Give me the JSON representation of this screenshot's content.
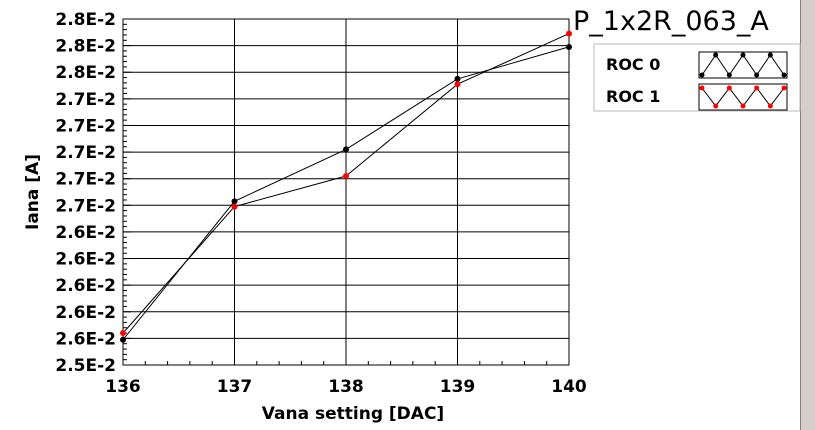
{
  "chart_data": {
    "type": "line",
    "title": "P_1x2R_063_A",
    "xlabel": "Vana setting [DAC]",
    "ylabel": "Iana [A]",
    "x": [
      136,
      137,
      138,
      139,
      140
    ],
    "xlim": [
      136,
      140
    ],
    "xticks": [
      "136",
      "137",
      "138",
      "139",
      "140"
    ],
    "yticks": [
      "2.5E-2",
      "2.6E-2",
      "2.6E-2",
      "2.6E-2",
      "2.6E-2",
      "2.6E-2",
      "2.7E-2",
      "2.7E-2",
      "2.7E-2",
      "2.7E-2",
      "2.7E-2",
      "2.8E-2",
      "2.8E-2",
      "2.8E-2"
    ],
    "ylim": [
      0,
      13
    ],
    "grid": true,
    "legend_position": "top-right",
    "series": [
      {
        "name": "ROC 0",
        "color": "#000000",
        "values": [
          0.95,
          6.15,
          8.1,
          10.75,
          11.95
        ]
      },
      {
        "name": "ROC 1",
        "color": "#ff0000",
        "values": [
          1.2,
          5.95,
          7.1,
          10.55,
          12.45
        ]
      }
    ]
  }
}
